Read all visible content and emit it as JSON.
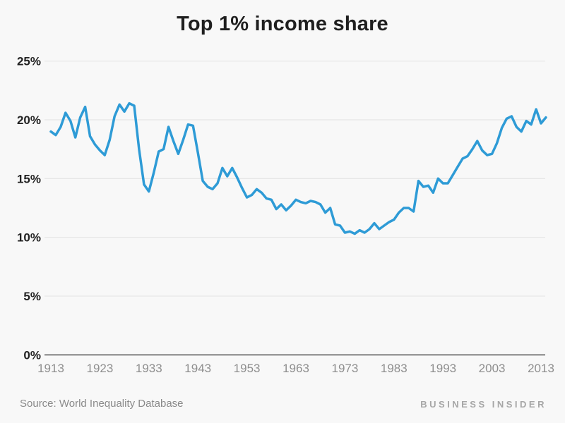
{
  "header": {
    "title": "Top 1% income share"
  },
  "footer": {
    "source": "Source: World Inequality Database",
    "brand": "BUSINESS INSIDER"
  },
  "colors": {
    "background": "#F8F8F8",
    "line": "#2E9BD6",
    "grid": "#E7E7E7",
    "axis_line": "#9B9B9B",
    "title_text": "#1F1F1F",
    "y_label_text": "#222222",
    "x_label_text": "#8E8E8E",
    "source_text": "#8A8A8A",
    "brand_text": "#A6A6A6"
  },
  "chart_data": {
    "type": "line",
    "title": "Top 1% income share",
    "xlabel": "",
    "ylabel": "",
    "ylim": [
      0,
      25
    ],
    "xlim": [
      1913,
      2014
    ],
    "grid": "horizontal",
    "legend": "none",
    "y_ticks": [
      0,
      5,
      10,
      15,
      20,
      25
    ],
    "y_tick_labels": [
      "0%",
      "5%",
      "10%",
      "15%",
      "20%",
      "25%"
    ],
    "x_ticks": [
      1913,
      1923,
      1933,
      1943,
      1953,
      1963,
      1973,
      1983,
      1993,
      2003,
      2013
    ],
    "x_tick_labels": [
      "1913",
      "1923",
      "1933",
      "1943",
      "1953",
      "1963",
      "1973",
      "1983",
      "1993",
      "2003",
      "2013"
    ],
    "x": [
      1913,
      1914,
      1915,
      1916,
      1917,
      1918,
      1919,
      1920,
      1921,
      1922,
      1923,
      1924,
      1925,
      1926,
      1927,
      1928,
      1929,
      1930,
      1931,
      1932,
      1933,
      1934,
      1935,
      1936,
      1937,
      1938,
      1939,
      1940,
      1941,
      1942,
      1943,
      1944,
      1945,
      1946,
      1947,
      1948,
      1949,
      1950,
      1951,
      1952,
      1953,
      1954,
      1955,
      1956,
      1957,
      1958,
      1959,
      1960,
      1961,
      1962,
      1963,
      1964,
      1965,
      1966,
      1967,
      1968,
      1969,
      1970,
      1971,
      1972,
      1973,
      1974,
      1975,
      1976,
      1977,
      1978,
      1979,
      1980,
      1981,
      1982,
      1983,
      1984,
      1985,
      1986,
      1987,
      1988,
      1989,
      1990,
      1991,
      1992,
      1993,
      1994,
      1995,
      1996,
      1997,
      1998,
      1999,
      2000,
      2001,
      2002,
      2003,
      2004,
      2005,
      2006,
      2007,
      2008,
      2009,
      2010,
      2011,
      2012,
      2013,
      2014
    ],
    "series": [
      {
        "name": "Top 1% income share (%)",
        "color": "#2E9BD6",
        "values": [
          19.0,
          18.7,
          19.4,
          20.6,
          19.9,
          18.5,
          20.2,
          21.1,
          18.6,
          17.9,
          17.4,
          17.0,
          18.3,
          20.3,
          21.3,
          20.7,
          21.4,
          21.2,
          17.5,
          14.5,
          13.9,
          15.5,
          17.3,
          17.5,
          19.4,
          18.2,
          17.1,
          18.3,
          19.6,
          19.5,
          17.2,
          14.8,
          14.3,
          14.1,
          14.6,
          15.9,
          15.2,
          15.9,
          15.1,
          14.2,
          13.4,
          13.6,
          14.1,
          13.8,
          13.3,
          13.2,
          12.4,
          12.8,
          12.3,
          12.7,
          13.2,
          13.0,
          12.9,
          13.1,
          13.0,
          12.8,
          12.1,
          12.5,
          11.1,
          11.0,
          10.4,
          10.5,
          10.3,
          10.6,
          10.4,
          10.7,
          11.2,
          10.7,
          11.0,
          11.3,
          11.5,
          12.1,
          12.5,
          12.5,
          12.2,
          14.8,
          14.3,
          14.4,
          13.8,
          15.0,
          14.6,
          14.6,
          15.3,
          16.0,
          16.7,
          16.9,
          17.5,
          18.2,
          17.4,
          17.0,
          17.1,
          18.0,
          19.3,
          20.1,
          20.3,
          19.4,
          19.0,
          19.9,
          19.6,
          20.9,
          19.7,
          20.2
        ]
      }
    ]
  }
}
